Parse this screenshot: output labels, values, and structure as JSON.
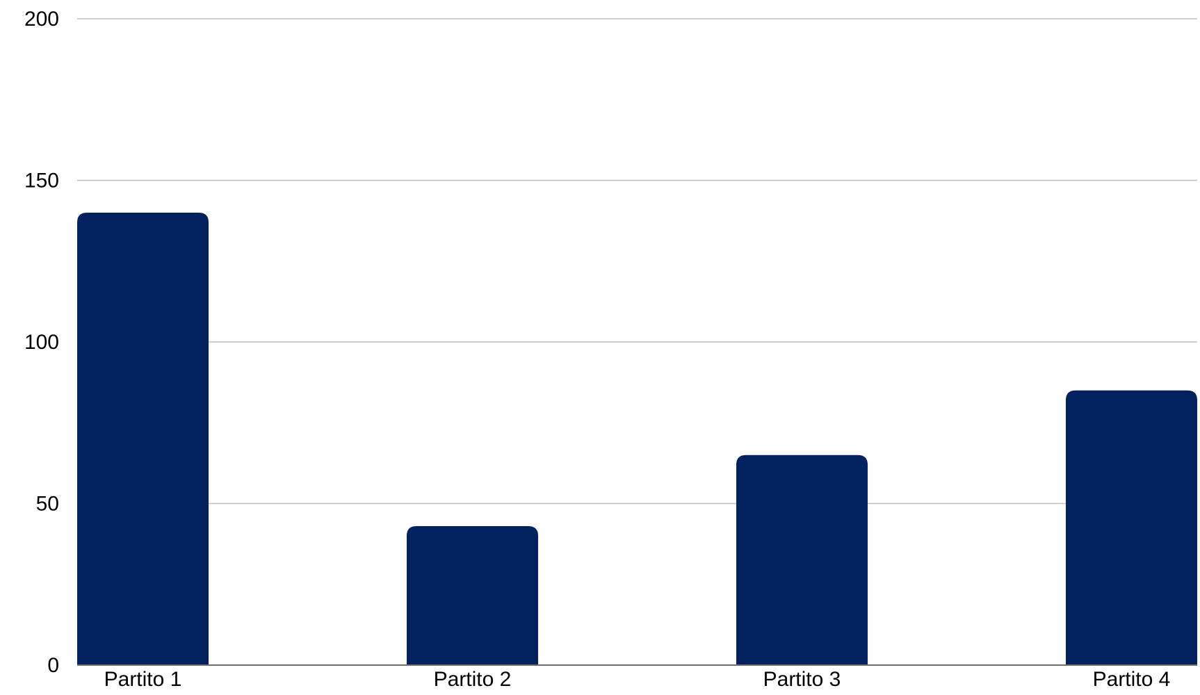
{
  "chart_data": {
    "type": "bar",
    "categories": [
      "Partito 1",
      "Partito 2",
      "Partito 3",
      "Partito 4"
    ],
    "values": [
      140,
      43,
      65,
      85
    ],
    "ylim": [
      0,
      200
    ],
    "yticks": [
      "0",
      "50",
      "100",
      "150",
      "200"
    ],
    "grid": true,
    "legend": "none",
    "colors": {
      "bar": "#03205F",
      "grid": "#BFBFBF",
      "axis": "#6E6E6E",
      "text": "#000000"
    }
  }
}
